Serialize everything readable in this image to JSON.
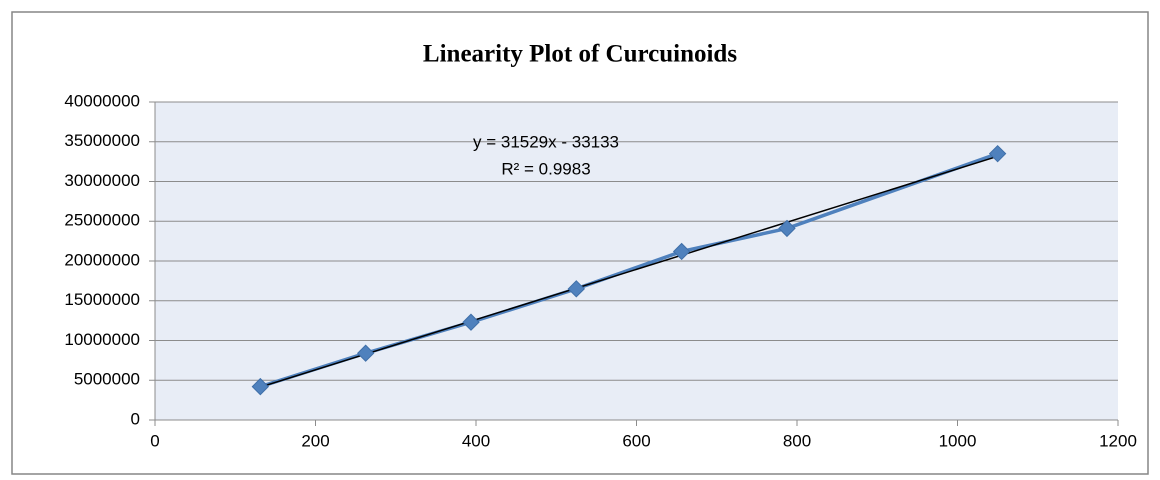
{
  "chart_data": {
    "type": "scatter",
    "title": "Linearity Plot of Curcuinoids",
    "x": [
      131.25,
      262.5,
      393.75,
      525,
      656.25,
      787.5,
      1050
    ],
    "series": [
      {
        "name": "Curcuinoids",
        "color": "#4f81bd",
        "values": [
          4200000,
          8400000,
          12300000,
          16500000,
          21200000,
          24100000,
          33500000
        ]
      }
    ],
    "xlim": [
      0,
      1200
    ],
    "xticks": [
      0,
      200,
      400,
      600,
      800,
      1000,
      1200
    ],
    "ylim": [
      0,
      40000000
    ],
    "yticks": [
      0,
      5000000,
      10000000,
      15000000,
      20000000,
      25000000,
      30000000,
      35000000,
      40000000
    ],
    "grid": true,
    "legend": false,
    "annotations": [
      "y = 31529x - 33133",
      "R² = 0.9983"
    ]
  }
}
